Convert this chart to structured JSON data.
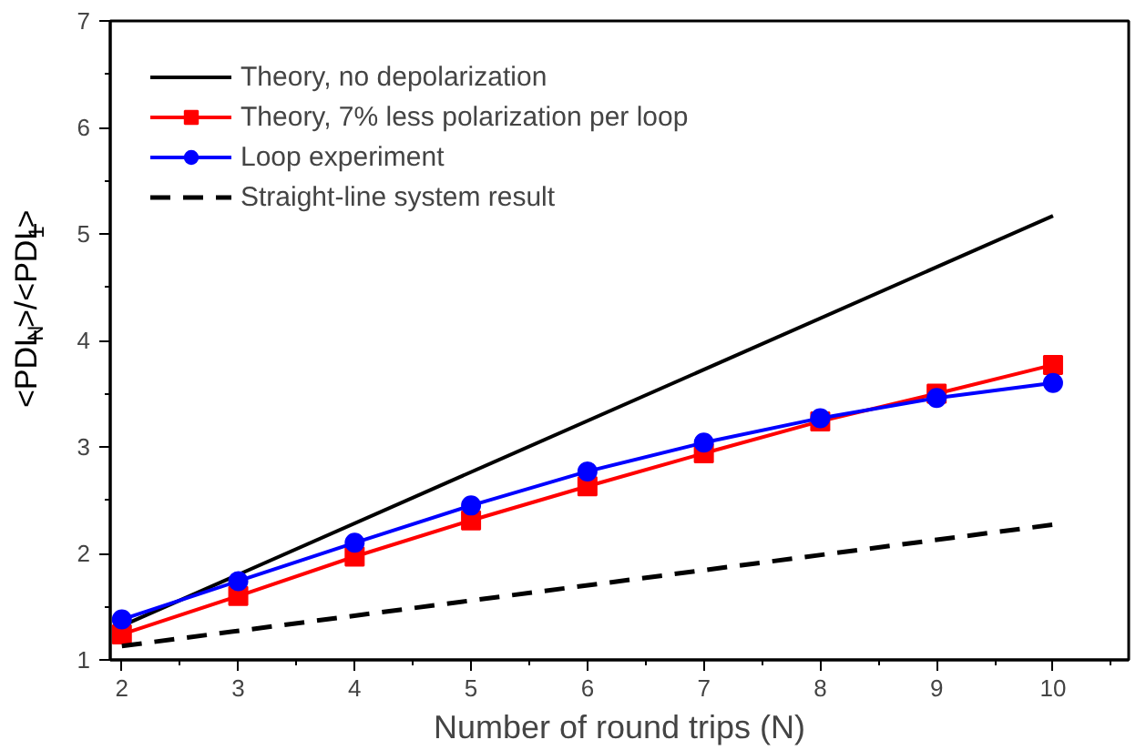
{
  "chart_data": {
    "type": "line",
    "xlabel": "Number of round trips (N)",
    "ylabel": "<PDL$_{N}$>/<PDL$_{1}$>",
    "xlim": [
      1.9,
      10.65
    ],
    "ylim": [
      1,
      7
    ],
    "xticks": [
      2,
      3,
      4,
      5,
      6,
      7,
      8,
      9,
      10
    ],
    "yticks": [
      1,
      2,
      3,
      4,
      5,
      6,
      7
    ],
    "grid": false,
    "legend": "top left",
    "series": [
      {
        "name": "Theory, no depolarization",
        "color": "#000000",
        "x": [
          2,
          10
        ],
        "values": [
          1.32,
          5.17
        ],
        "marker": "none",
        "line_style": "solid"
      },
      {
        "name": "Theory, 7% less polarization per loop",
        "color": "#ff0000",
        "x": [
          2,
          3,
          4,
          5,
          6,
          7,
          8,
          9,
          10
        ],
        "values": [
          1.24,
          1.6,
          1.97,
          2.31,
          2.63,
          2.94,
          3.24,
          3.5,
          3.77
        ],
        "marker": "square",
        "line_style": "solid"
      },
      {
        "name": "Loop experiment",
        "color": "#0000ff",
        "x": [
          2,
          3,
          4,
          5,
          6,
          7,
          8,
          9,
          10
        ],
        "values": [
          1.38,
          1.74,
          2.1,
          2.45,
          2.77,
          3.04,
          3.27,
          3.46,
          3.6
        ],
        "marker": "circle",
        "line_style": "solid"
      },
      {
        "name": "Straight-line system result",
        "color": "#000000",
        "x": [
          2,
          10
        ],
        "values": [
          1.13,
          2.27
        ],
        "marker": "none",
        "line_style": "dashed"
      }
    ]
  }
}
